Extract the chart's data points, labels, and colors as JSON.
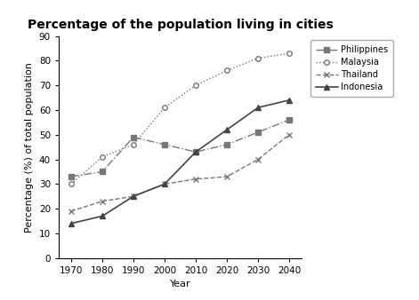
{
  "title": "Percentage of the population living in cities",
  "xlabel": "Year",
  "ylabel": "Percentage (%) of total population",
  "years": [
    1970,
    1980,
    1990,
    2000,
    2010,
    2020,
    2030,
    2040
  ],
  "series": {
    "Philippines": {
      "values": [
        33,
        35,
        49,
        46,
        43,
        46,
        51,
        56
      ],
      "color": "#777777",
      "linestyle": "-.",
      "marker": "s",
      "markersize": 4,
      "linewidth": 1.0
    },
    "Malaysia": {
      "values": [
        30,
        41,
        46,
        61,
        70,
        76,
        81,
        83
      ],
      "color": "#777777",
      "linestyle": ":",
      "marker": "o",
      "markersize": 4,
      "linewidth": 1.0,
      "markerfacecolor": "white"
    },
    "Thailand": {
      "values": [
        19,
        23,
        25,
        30,
        32,
        33,
        40,
        50
      ],
      "color": "#777777",
      "linestyle": "--",
      "marker": "x",
      "markersize": 5,
      "linewidth": 1.0
    },
    "Indonesia": {
      "values": [
        14,
        17,
        25,
        30,
        43,
        52,
        61,
        64
      ],
      "color": "#444444",
      "linestyle": "-",
      "marker": "^",
      "markersize": 4,
      "linewidth": 1.2
    }
  },
  "ylim": [
    0,
    90
  ],
  "yticks": [
    0,
    10,
    20,
    30,
    40,
    50,
    60,
    70,
    80,
    90
  ],
  "background_color": "#ffffff",
  "title_fontsize": 10,
  "label_fontsize": 8,
  "tick_fontsize": 7.5
}
